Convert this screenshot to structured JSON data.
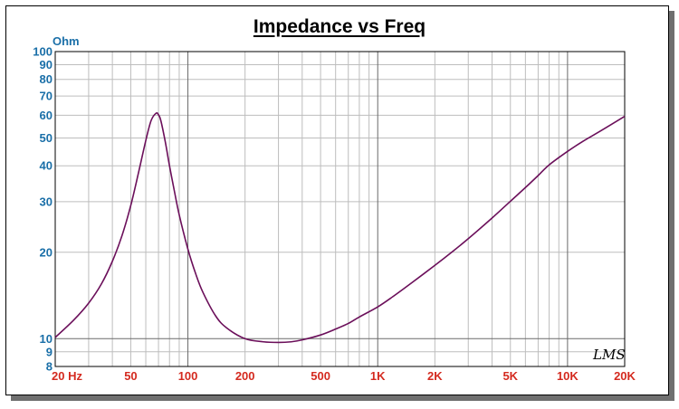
{
  "chart_data": {
    "type": "line",
    "title": "Impedance vs Freq",
    "ylabel": "Ohm",
    "xlabel": "",
    "x_scale": "log",
    "y_scale": "log",
    "xlim": [
      20,
      20000
    ],
    "ylim": [
      8,
      100
    ],
    "grid": true,
    "x_ticks": [
      {
        "value": 20,
        "label": "20  Hz"
      },
      {
        "value": 50,
        "label": "50"
      },
      {
        "value": 100,
        "label": "100"
      },
      {
        "value": 200,
        "label": "200"
      },
      {
        "value": 500,
        "label": "500"
      },
      {
        "value": 1000,
        "label": "1K"
      },
      {
        "value": 2000,
        "label": "2K"
      },
      {
        "value": 5000,
        "label": "5K"
      },
      {
        "value": 10000,
        "label": "10K"
      },
      {
        "value": 20000,
        "label": "20K"
      }
    ],
    "y_ticks": [
      {
        "value": 100,
        "label": "100"
      },
      {
        "value": 90,
        "label": "90"
      },
      {
        "value": 80,
        "label": "80"
      },
      {
        "value": 70,
        "label": "70"
      },
      {
        "value": 60,
        "label": "60"
      },
      {
        "value": 50,
        "label": "50"
      },
      {
        "value": 40,
        "label": "40"
      },
      {
        "value": 30,
        "label": "30"
      },
      {
        "value": 20,
        "label": "20"
      },
      {
        "value": 10,
        "label": "10"
      },
      {
        "value": 9,
        "label": "9"
      },
      {
        "value": 8,
        "label": "8"
      }
    ],
    "series": [
      {
        "color": "#6b0f5a",
        "x": [
          20,
          25,
          30,
          35,
          40,
          45,
          50,
          55,
          60,
          64,
          68,
          70,
          72,
          76,
          80,
          85,
          90,
          100,
          110,
          120,
          140,
          160,
          200,
          250,
          300,
          350,
          400,
          500,
          600,
          700,
          800,
          1000,
          1200,
          1500,
          2000,
          2500,
          3000,
          4000,
          5000,
          6000,
          7000,
          8000,
          10000,
          12000,
          15000,
          20000
        ],
        "y": [
          10.1,
          11.6,
          13.3,
          15.5,
          18.6,
          22.9,
          29.1,
          38.0,
          49.0,
          57.5,
          61.0,
          60.2,
          57.5,
          48.5,
          40.0,
          32.5,
          27.0,
          20.5,
          16.8,
          14.5,
          12.0,
          10.9,
          10.0,
          9.75,
          9.7,
          9.75,
          9.9,
          10.3,
          10.8,
          11.3,
          11.9,
          12.9,
          14.0,
          15.6,
          18.0,
          20.2,
          22.3,
          26.3,
          30.1,
          33.6,
          37.0,
          40.3,
          44.9,
          48.6,
          53.0,
          59.5
        ]
      }
    ],
    "watermark": "LMS"
  }
}
